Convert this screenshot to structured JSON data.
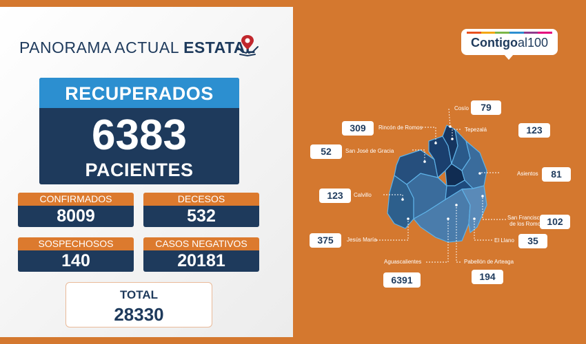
{
  "header": {
    "title_light": "PANORAMA ACTUAL",
    "title_bold": "ESTATAL"
  },
  "recovered": {
    "label": "RECUPERADOS",
    "value": "6383",
    "unit": "PACIENTES"
  },
  "stats": {
    "confirmed": {
      "label": "CONFIRMADOS",
      "value": "8009"
    },
    "deaths": {
      "label": "DECESOS",
      "value": "532"
    },
    "suspected": {
      "label": "SOSPECHOSOS",
      "value": "140"
    },
    "negative": {
      "label": "CASOS NEGATIVOS",
      "value": "20181"
    }
  },
  "total": {
    "label": "TOTAL",
    "value": "28330"
  },
  "brand": {
    "part1": "Contigo",
    "part2": "al100"
  },
  "municipalities": {
    "cosio": {
      "name": "Cosío",
      "value": "79"
    },
    "rincon": {
      "name": "Rincón de Romos",
      "value": "309"
    },
    "tepezala": {
      "name": "Tepezalá",
      "value": "123"
    },
    "san_jose": {
      "name": "San José de Gracia",
      "value": "52"
    },
    "asientos": {
      "name": "Asientos",
      "value": "81"
    },
    "calvillo": {
      "name": "Calvillo",
      "value": "123"
    },
    "san_francisco": {
      "name": "San Francisco",
      "name2": "de los Romo",
      "value": "102"
    },
    "jesus_maria": {
      "name": "Jesús María",
      "value": "375"
    },
    "el_llano": {
      "name": "El Llano",
      "value": "35"
    },
    "aguascalientes": {
      "name": "Aguascalientes",
      "value": "6391"
    },
    "pabellon": {
      "name": "Pabellón de Arteaga",
      "value": "194"
    }
  },
  "colors": {
    "background": "#d4782f",
    "navy": "#1e3a5c",
    "blue": "#2c8fd0",
    "orange": "#dc7a2e"
  },
  "icons": [
    "location-hands-icon"
  ]
}
